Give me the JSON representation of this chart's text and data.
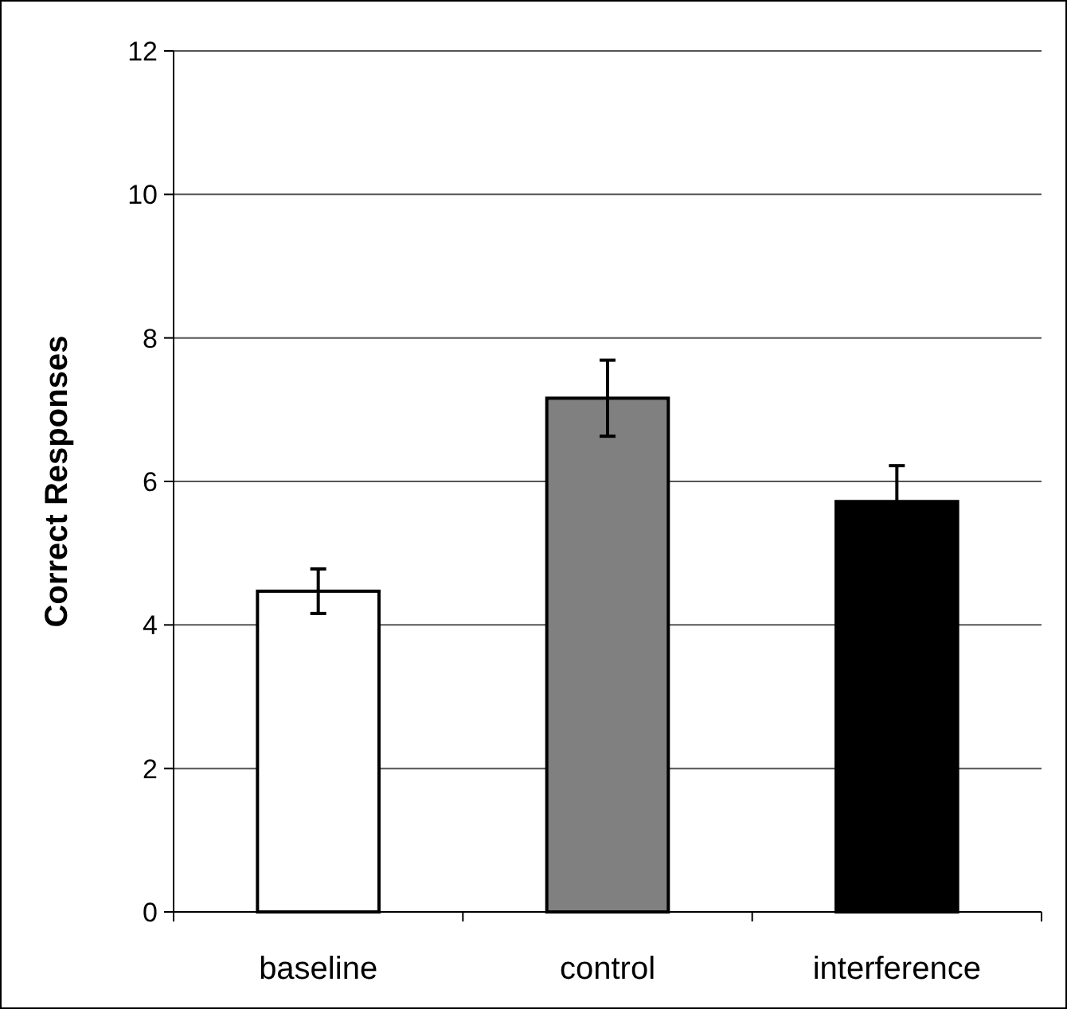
{
  "chart_data": {
    "type": "bar",
    "ylabel": "Correct Responses",
    "categories": [
      "baseline",
      "control",
      "interference"
    ],
    "values": [
      4.47,
      7.16,
      5.72
    ],
    "colors": [
      "#ffffff",
      "#808080",
      "#000000"
    ],
    "errors": [
      0.31,
      0.53,
      0.5
    ],
    "ylim": [
      0,
      12
    ],
    "yticks": [
      0,
      2,
      4,
      6,
      8,
      10,
      12
    ],
    "grid": "y"
  }
}
